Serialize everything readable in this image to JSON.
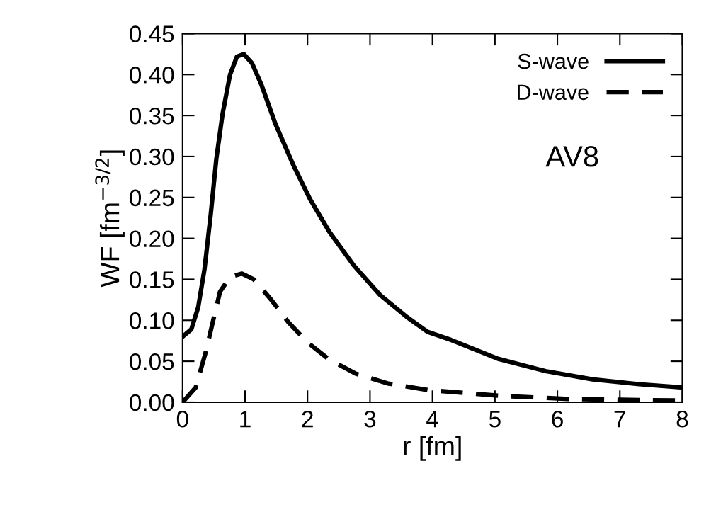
{
  "chart_data": {
    "type": "line",
    "xlabel": "r [fm]",
    "ylabel": "WF [fm$^{−3/2}$]",
    "xlim": [
      0,
      8
    ],
    "ylim": [
      0,
      0.45
    ],
    "xticks": [
      0,
      1,
      2,
      3,
      4,
      5,
      6,
      7,
      8
    ],
    "yticks": [
      {
        "value": 0,
        "label": "0.00"
      },
      {
        "value": 0.05,
        "label": "0.05"
      },
      {
        "value": 0.1,
        "label": "0.10"
      },
      {
        "value": 0.15,
        "label": "0.15"
      },
      {
        "value": 0.2,
        "label": "0.20"
      },
      {
        "value": 0.25,
        "label": "0.25"
      },
      {
        "value": 0.3,
        "label": "0.30"
      },
      {
        "value": 0.35,
        "label": "0.35"
      },
      {
        "value": 0.4,
        "label": "0.40"
      },
      {
        "value": 0.45,
        "label": "0.45"
      }
    ],
    "grid": false,
    "legend": "top right",
    "marker": "none",
    "annotations": [
      "AV8"
    ],
    "series": [
      {
        "name": "S-wave",
        "color": "#000000",
        "line_style": "solid",
        "x": [
          0,
          0.14,
          0.25,
          0.35,
          0.45,
          0.54,
          0.64,
          0.76,
          0.87,
          0.98,
          1.11,
          1.26,
          1.49,
          1.77,
          2.04,
          2.35,
          2.74,
          3.16,
          3.59,
          3.92,
          4.3,
          5.05,
          5.81,
          6.56,
          7.31,
          8.0
        ],
        "values": [
          0.08,
          0.089,
          0.116,
          0.162,
          0.229,
          0.297,
          0.352,
          0.4,
          0.422,
          0.425,
          0.414,
          0.388,
          0.339,
          0.29,
          0.248,
          0.208,
          0.167,
          0.131,
          0.104,
          0.086,
          0.076,
          0.053,
          0.038,
          0.028,
          0.022,
          0.018
        ]
      },
      {
        "name": "D-wave",
        "color": "#000000",
        "line_style": "dashed",
        "x": [
          0,
          0.21,
          0.37,
          0.49,
          0.6,
          0.76,
          0.95,
          1.14,
          1.42,
          1.69,
          2.0,
          2.35,
          2.77,
          3.28,
          3.92,
          5.05,
          6.18,
          7.0,
          8.0
        ],
        "values": [
          0,
          0.018,
          0.061,
          0.1,
          0.135,
          0.153,
          0.157,
          0.15,
          0.125,
          0.098,
          0.073,
          0.052,
          0.035,
          0.023,
          0.015,
          0.008,
          0.004,
          0.003,
          0.002
        ]
      }
    ]
  }
}
